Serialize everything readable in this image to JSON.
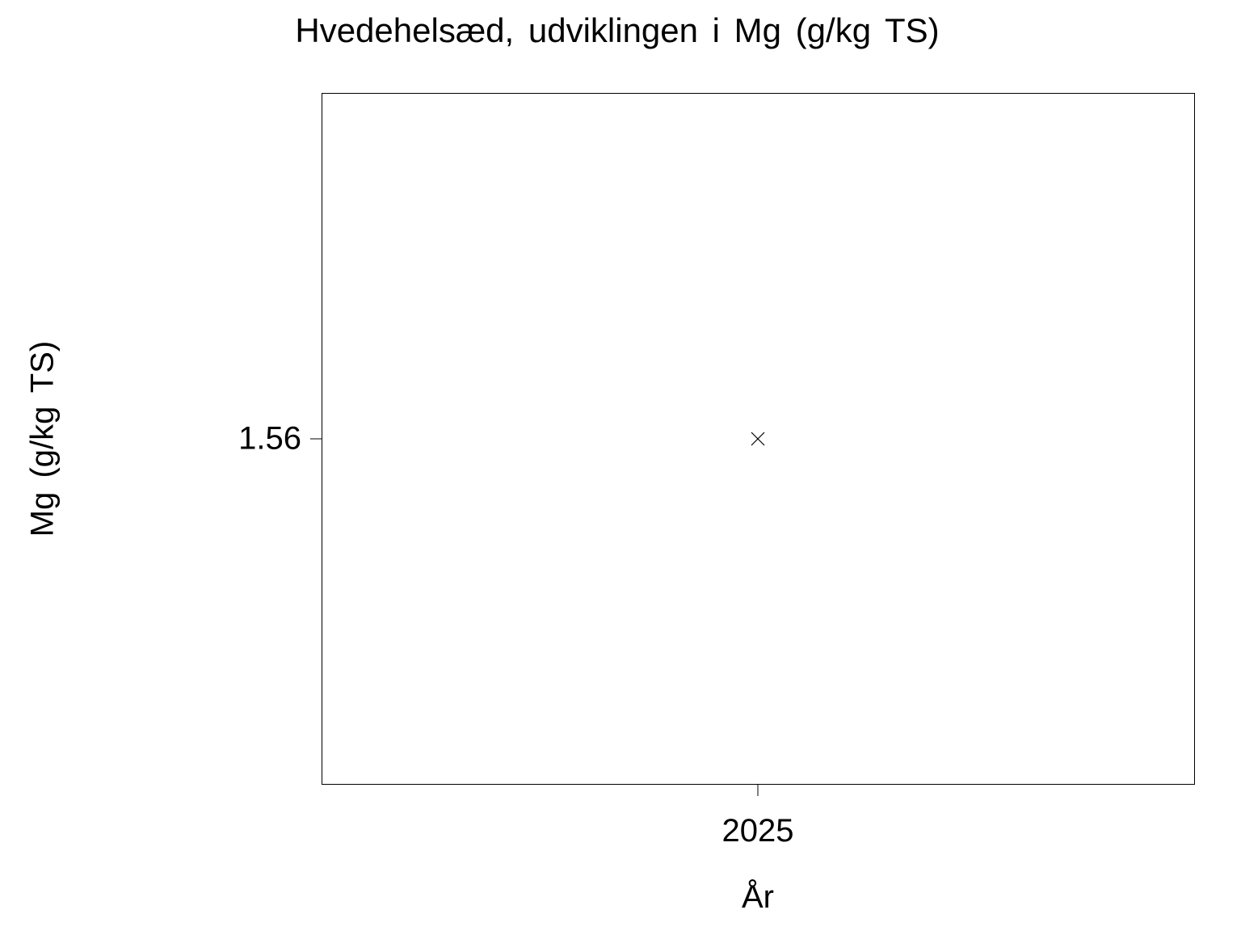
{
  "chart_data": {
    "type": "scatter",
    "title": "Hvedehelsæd, udviklingen i Mg (g/kg TS)",
    "xlabel": "År",
    "ylabel": "Mg (g/kg TS)",
    "x_ticks": [
      "2025"
    ],
    "y_ticks": [
      "1.56"
    ],
    "points": [
      {
        "x": 2025,
        "y": 1.56
      }
    ],
    "marker": "x",
    "grid": false,
    "color": "#000000"
  }
}
